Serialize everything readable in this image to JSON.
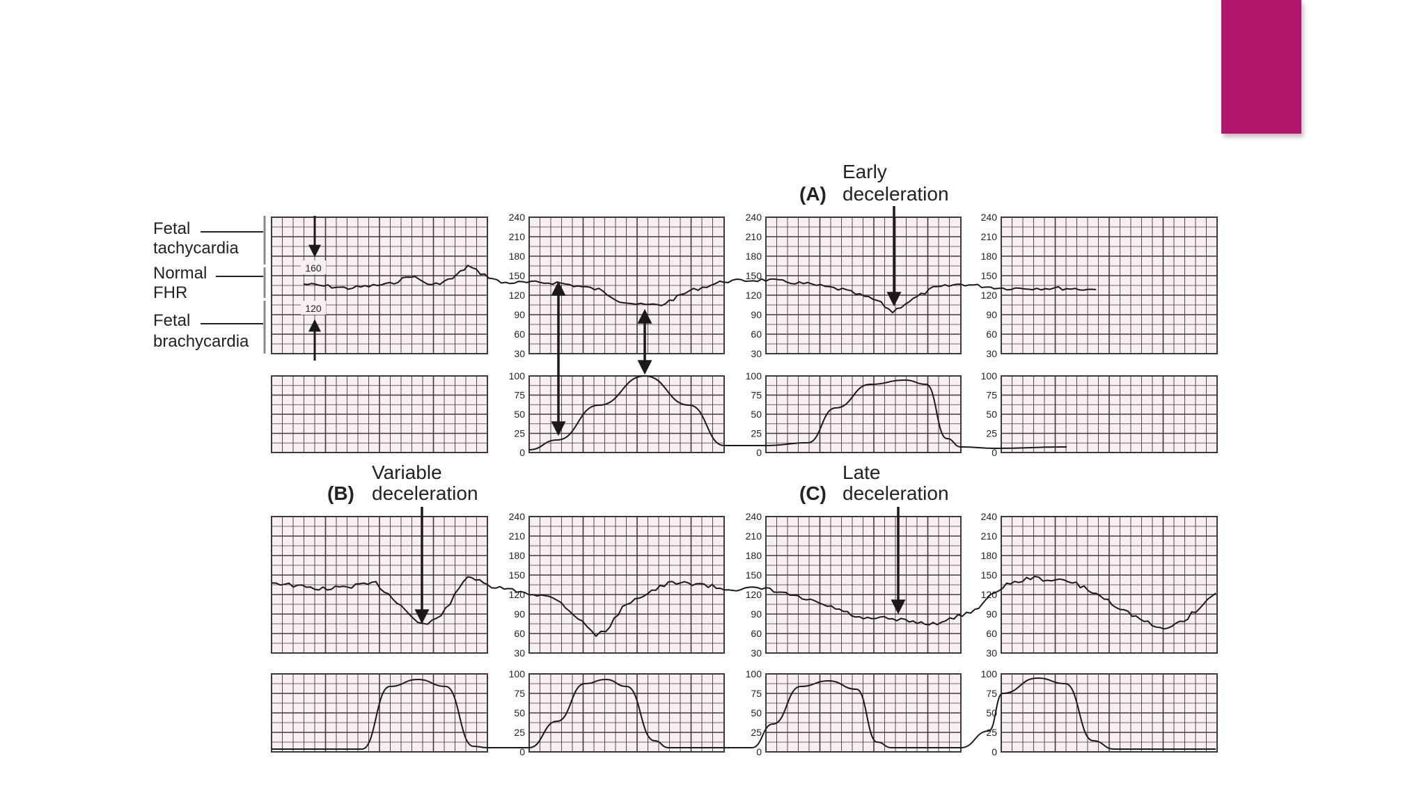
{
  "slide": {
    "accent_color": "#b0166b"
  },
  "colors": {
    "grid_bg": "#f9eef4",
    "grid_line": "#3a3a3a",
    "trace": "#1a1a1a"
  },
  "side_labels": {
    "tachy_1": "Fetal",
    "tachy_2": "tachycardia",
    "normal_1": "Normal",
    "normal_2": "FHR",
    "brady_1": "Fetal",
    "brady_2": "brachycardia",
    "marker_160": "160",
    "marker_120": "120"
  },
  "panels": {
    "A": {
      "letter": "(A)",
      "line1": "Early",
      "line2": "deceleration"
    },
    "B": {
      "letter": "(B)",
      "line1": "Variable",
      "line2": "deceleration"
    },
    "C": {
      "letter": "(C)",
      "line1": "Late",
      "line2": "deceleration"
    }
  },
  "fhr_ticks": [
    "240",
    "210",
    "180",
    "150",
    "120",
    "90",
    "60",
    "30"
  ],
  "uc_ticks": [
    "100",
    "75",
    "50",
    "25",
    "0"
  ]
}
